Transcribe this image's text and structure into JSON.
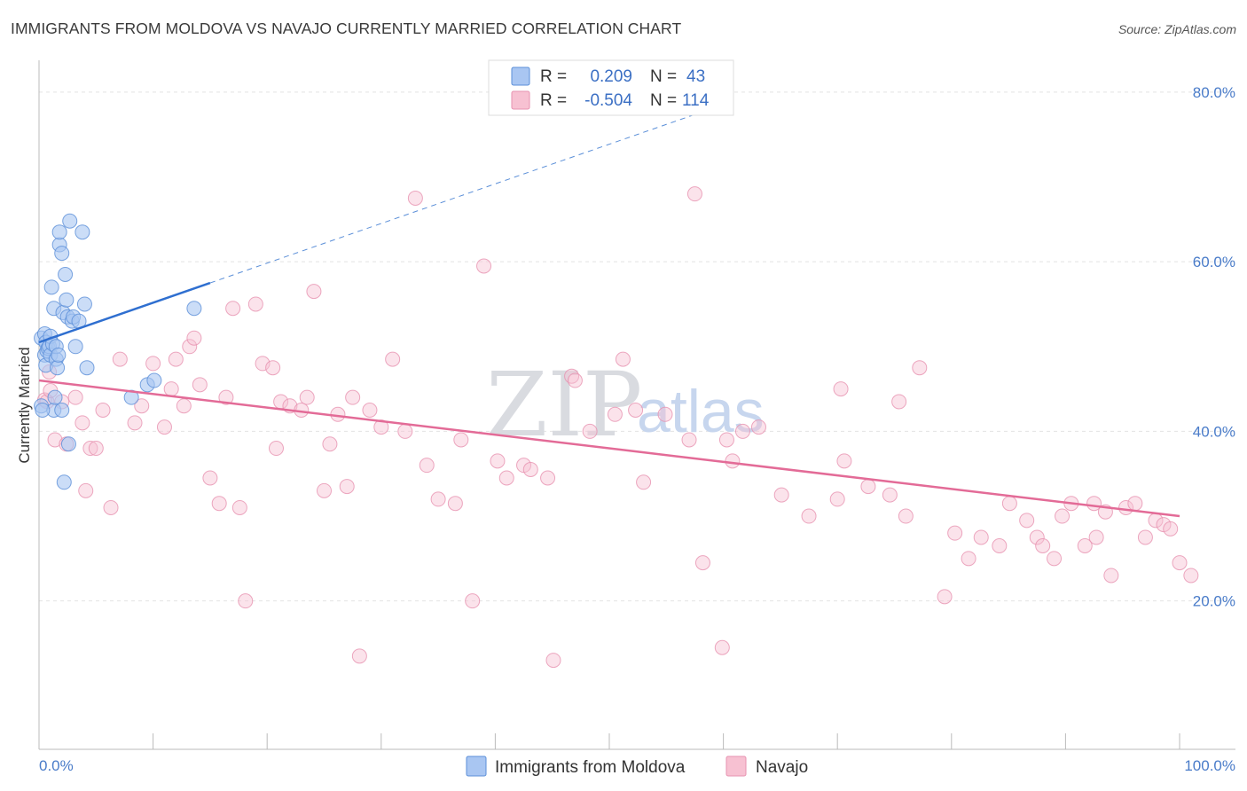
{
  "title": "IMMIGRANTS FROM MOLDOVA VS NAVAJO CURRENTLY MARRIED CORRELATION CHART",
  "source": "Source: ZipAtlas.com",
  "watermark": {
    "zip": "ZIP",
    "atlas": "atlas"
  },
  "legend": {
    "r_label": "R =",
    "n_label": "N =",
    "rows": [
      {
        "r": "0.209",
        "n": "43",
        "fill": "#a9c6f2",
        "stroke": "#5b8fd8"
      },
      {
        "r": "-0.504",
        "n": "114",
        "fill": "#f7c1d2",
        "stroke": "#e792b0"
      }
    ]
  },
  "chart_data": {
    "type": "scatter",
    "title": "IMMIGRANTS FROM MOLDOVA VS NAVAJO CURRENTLY MARRIED CORRELATION CHART",
    "xlabel": "",
    "ylabel": "Currently Married",
    "xlim": [
      0,
      100
    ],
    "ylim": [
      2.5,
      82.5
    ],
    "x_tick_labels": [
      "0.0%",
      "100.0%"
    ],
    "y_ticks": [
      20,
      40,
      60,
      80
    ],
    "y_tick_labels": [
      "20.0%",
      "40.0%",
      "60.0%",
      "80.0%"
    ],
    "grid": true,
    "legend_position": "top-center",
    "series": [
      {
        "name": "Immigrants from Moldova",
        "color": "#5b8fd8",
        "fill": "#a9c6f2",
        "trend": {
          "x0": 0,
          "y0": 50.5,
          "x1": 15,
          "y1": 57.5,
          "dash_to_x": 61,
          "dash_to_y": 79.0
        },
        "x": [
          0.2,
          0.2,
          0.5,
          0.5,
          0.6,
          0.6,
          0.7,
          0.8,
          0.9,
          1.0,
          1.0,
          1.1,
          1.2,
          1.3,
          1.3,
          1.4,
          1.5,
          1.5,
          1.6,
          1.7,
          1.8,
          1.8,
          2.0,
          2.0,
          2.1,
          2.2,
          2.3,
          2.4,
          2.5,
          2.6,
          2.7,
          2.9,
          3.0,
          3.2,
          3.5,
          3.8,
          4.0,
          4.2,
          8.1,
          9.5,
          10.1,
          13.6,
          0.3
        ],
        "y": [
          51.0,
          43.0,
          51.5,
          49.0,
          47.8,
          50.5,
          49.5,
          49.8,
          50.0,
          51.2,
          49.0,
          57.0,
          50.3,
          54.5,
          42.5,
          44.0,
          48.5,
          50.0,
          47.5,
          49.0,
          62.0,
          63.5,
          61.0,
          42.5,
          54.0,
          34.0,
          58.5,
          55.5,
          53.5,
          38.5,
          64.8,
          53.0,
          53.5,
          50.0,
          53.0,
          63.5,
          55.0,
          47.5,
          44.0,
          45.5,
          46.0,
          54.5,
          42.5
        ]
      },
      {
        "name": "Navajo",
        "color": "#e792b0",
        "fill": "#f7c1d2",
        "trend": {
          "x0": 0,
          "y0": 46.0,
          "x1": 100,
          "y1": 30.0
        },
        "x": [
          0.5,
          0.7,
          0.9,
          1.0,
          1.4,
          2.0,
          2.4,
          3.2,
          3.8,
          4.1,
          4.5,
          5.0,
          5.6,
          6.3,
          7.1,
          8.4,
          9.0,
          10.0,
          11.0,
          11.6,
          12.0,
          12.7,
          13.2,
          13.6,
          14.1,
          15.0,
          15.8,
          16.4,
          17.0,
          17.6,
          18.1,
          19.0,
          19.6,
          20.5,
          20.8,
          21.2,
          22.0,
          23.0,
          23.5,
          24.1,
          25.0,
          25.5,
          26.2,
          27.0,
          27.5,
          28.1,
          29.0,
          30.0,
          31.0,
          32.1,
          33.0,
          34.0,
          35.0,
          36.5,
          37.0,
          38.0,
          39.0,
          40.2,
          41.0,
          42.5,
          43.1,
          44.6,
          45.1,
          46.7,
          47.0,
          48.3,
          50.5,
          51.2,
          52.3,
          53.0,
          54.9,
          57.0,
          57.5,
          58.2,
          59.9,
          60.3,
          60.8,
          61.7,
          63.1,
          65.1,
          67.5,
          70.3,
          70.6,
          72.7,
          74.6,
          75.4,
          77.2,
          80.3,
          81.5,
          82.6,
          84.2,
          85.1,
          86.6,
          87.5,
          89.0,
          89.7,
          90.5,
          91.7,
          92.7,
          93.5,
          94.0,
          95.3,
          96.1,
          97.0,
          97.9,
          98.6,
          99.2,
          100.0,
          101.0,
          92.5,
          88.0,
          79.4,
          76.0,
          70.0
        ],
        "y": [
          43.7,
          43.5,
          47.0,
          44.8,
          39.0,
          43.5,
          38.5,
          44.0,
          41.0,
          33.0,
          38.0,
          38.0,
          42.5,
          31.0,
          48.5,
          41.0,
          43.0,
          48.0,
          40.5,
          45.0,
          48.5,
          43.0,
          50.0,
          51.0,
          45.5,
          34.5,
          31.5,
          44.0,
          54.5,
          31.0,
          20.0,
          55.0,
          48.0,
          47.5,
          38.0,
          43.5,
          43.0,
          42.5,
          44.0,
          56.5,
          33.0,
          38.5,
          42.0,
          33.5,
          44.0,
          13.5,
          42.5,
          40.5,
          48.5,
          40.0,
          67.5,
          36.0,
          32.0,
          31.5,
          39.0,
          20.0,
          59.5,
          36.5,
          34.5,
          36.0,
          35.5,
          34.5,
          13.0,
          46.5,
          46.0,
          40.0,
          42.0,
          48.5,
          42.5,
          34.0,
          42.0,
          39.0,
          68.0,
          24.5,
          14.5,
          39.0,
          36.5,
          40.0,
          40.5,
          32.5,
          30.0,
          45.0,
          36.5,
          33.5,
          32.5,
          43.5,
          47.5,
          28.0,
          25.0,
          27.5,
          26.5,
          31.5,
          29.5,
          27.5,
          25.0,
          30.0,
          31.5,
          26.5,
          27.5,
          30.5,
          23.0,
          31.0,
          31.5,
          27.5,
          29.5,
          29.0,
          28.5,
          24.5,
          23.0,
          31.5,
          26.5,
          20.5,
          30.0,
          32.0
        ]
      }
    ]
  }
}
